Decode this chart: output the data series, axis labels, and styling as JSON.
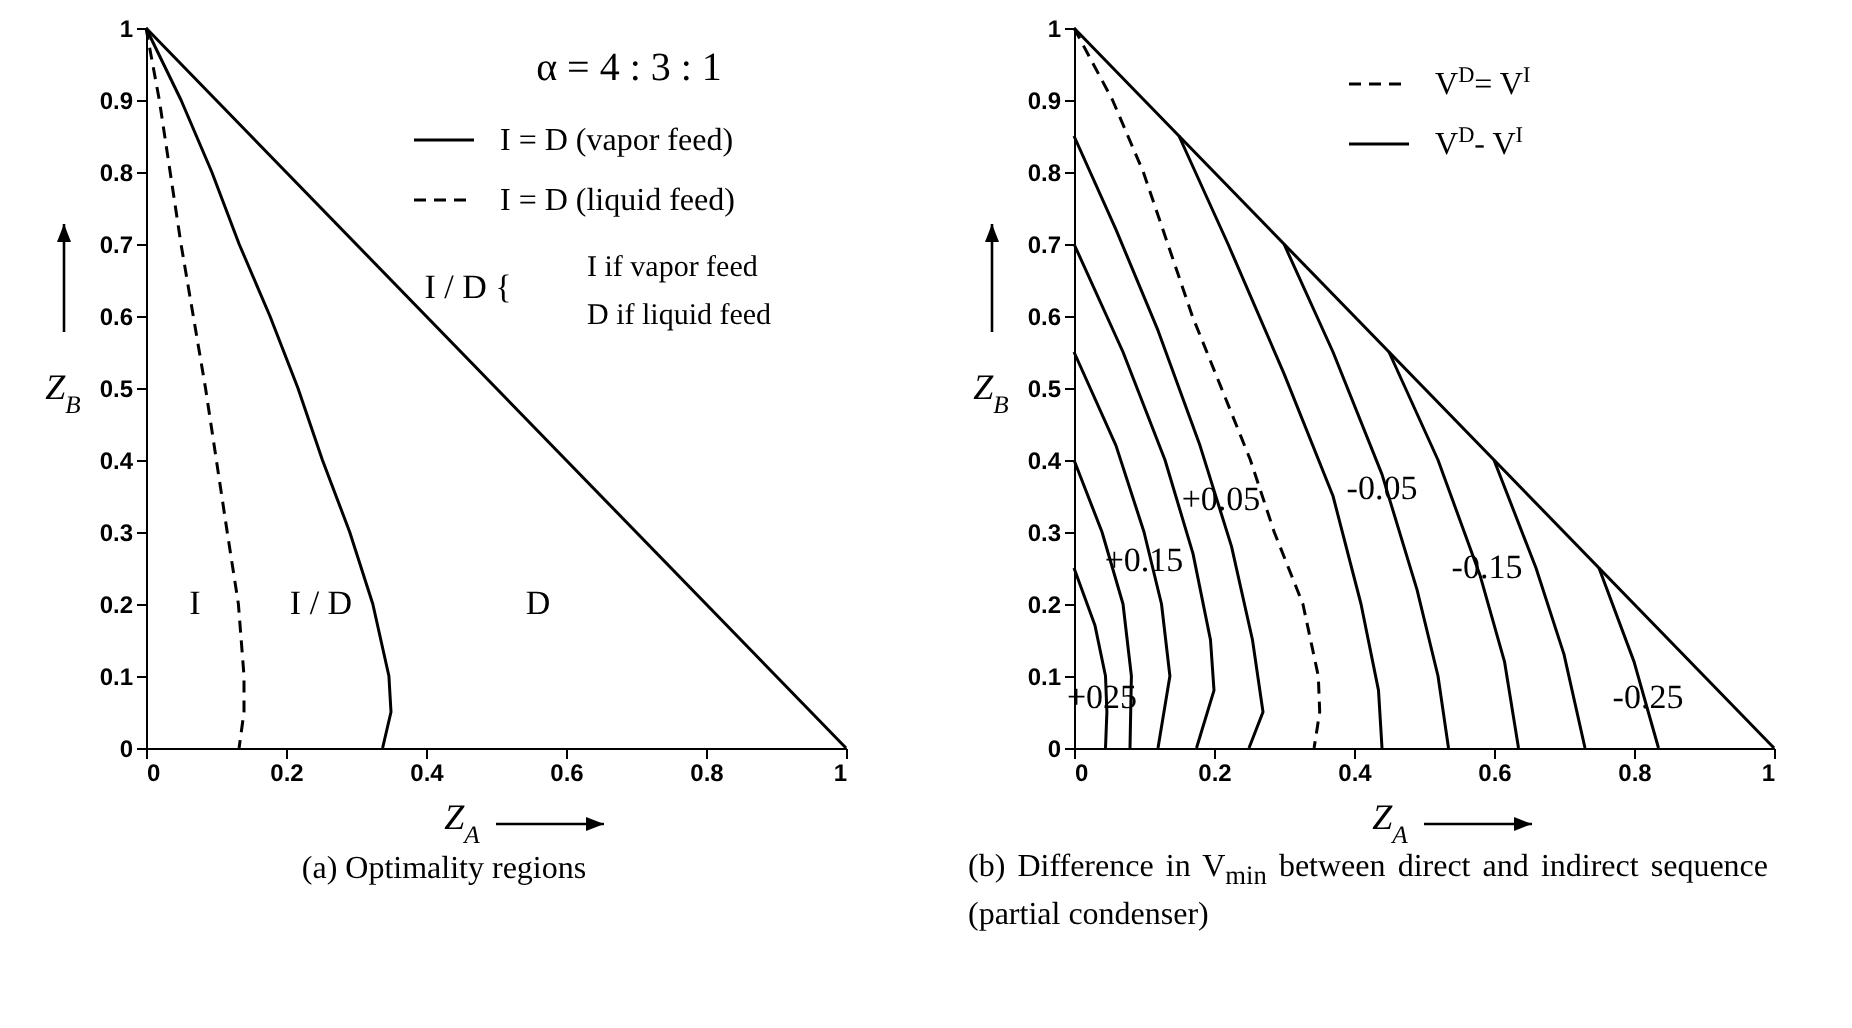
{
  "chart_data": [
    {
      "type": "line",
      "title": "(a) Optimality regions",
      "xlabel": "Z$_{A}$",
      "ylabel": "Z$_{B}$",
      "xlim": [
        0,
        1
      ],
      "ylim": [
        0,
        1
      ],
      "xticks": [
        0,
        0.2,
        0.4,
        0.6,
        0.8,
        1
      ],
      "yticks": [
        0,
        0.1,
        0.2,
        0.3,
        0.4,
        0.5,
        0.6,
        0.7,
        0.8,
        0.9,
        1
      ],
      "legend": "top right",
      "annotations": [
        "α = 4 : 3 : 1",
        "I / D  {",
        "I   if vapor feed",
        "D   if liquid feed",
        "I",
        "I / D",
        "D"
      ],
      "series": [
        {
          "color": "#000000",
          "line_style": "solid",
          "x": [
            0,
            1
          ],
          "values": [
            1,
            0
          ]
        },
        {
          "name": "I = D (vapor feed)",
          "color": "#000000",
          "line_style": "solid",
          "x": [
            0,
            0.05,
            0.094,
            0.133,
            0.177,
            0.217,
            0.252,
            0.291,
            0.324,
            0.347,
            0.35,
            0.338
          ],
          "values": [
            1,
            0.9,
            0.8,
            0.7,
            0.6,
            0.5,
            0.4,
            0.3,
            0.2,
            0.1,
            0.05,
            0
          ]
        },
        {
          "name": "I = D (liquid feed)",
          "color": "#000000",
          "line_style": "dashed",
          "x": [
            0,
            0.019,
            0.05,
            0.085,
            0.116,
            0.132,
            0.14,
            0.14,
            0.133
          ],
          "values": [
            1,
            0.9,
            0.7,
            0.5,
            0.3,
            0.2,
            0.1,
            0.05,
            0
          ]
        }
      ]
    },
    {
      "type": "line",
      "title": "(b) Difference in V$_{min}$ between direct and indirect sequence (partial condenser)",
      "xlabel": "Z$_{A}$",
      "ylabel": "Z$_{B}$",
      "xlim": [
        0,
        1
      ],
      "ylim": [
        0,
        1
      ],
      "xticks": [
        0,
        0.2,
        0.4,
        0.6,
        0.8,
        1
      ],
      "yticks": [
        0,
        0.1,
        0.2,
        0.3,
        0.4,
        0.5,
        0.6,
        0.7,
        0.8,
        0.9,
        1
      ],
      "legend": "top right",
      "annotations": [
        {
          "text": "+025",
          "x": 0.04,
          "y": 0.07
        },
        {
          "text": "+0.15",
          "x": 0.1,
          "y": 0.26
        },
        {
          "text": "+0.05",
          "x": 0.21,
          "y": 0.345
        },
        {
          "text": "-0.05",
          "x": 0.44,
          "y": 0.36
        },
        {
          "text": "-0.15",
          "x": 0.59,
          "y": 0.25
        },
        {
          "text": "-0.25",
          "x": 0.82,
          "y": 0.07
        }
      ],
      "series": [
        {
          "color": "#000000",
          "line_style": "solid",
          "x": [
            0,
            1
          ],
          "values": [
            1,
            0
          ]
        },
        {
          "name": "V$^{D}$= V$^{I}$",
          "color": "#000000",
          "line_style": "dashed",
          "x": [
            0,
            0.055,
            0.099,
            0.169,
            0.252,
            0.286,
            0.327,
            0.349,
            0.351,
            0.343
          ],
          "values": [
            1,
            0.9,
            0.8,
            0.6,
            0.4,
            0.3,
            0.2,
            0.1,
            0.05,
            0
          ]
        },
        {
          "name": "V$^{D}$- V$^{I}$",
          "color": "#000000",
          "line_style": "solid",
          "x": [
            0.15,
            0.22,
            0.3,
            0.37,
            0.41,
            0.435,
            0.44
          ],
          "values": [
            0.85,
            0.7,
            0.52,
            0.35,
            0.2,
            0.08,
            0
          ]
        },
        {
          "color": "#000000",
          "line_style": "solid",
          "x": [
            0,
            0.03,
            0.045,
            0.047,
            0.045
          ],
          "values": [
            0.25,
            0.17,
            0.1,
            0.05,
            0
          ]
        },
        {
          "color": "#000000",
          "line_style": "solid",
          "x": [
            0,
            0.04,
            0.07,
            0.082,
            0.08
          ],
          "values": [
            0.4,
            0.3,
            0.2,
            0.1,
            0
          ]
        },
        {
          "color": "#000000",
          "line_style": "solid",
          "x": [
            0,
            0.06,
            0.1,
            0.125,
            0.137,
            0.12
          ],
          "values": [
            0.55,
            0.42,
            0.3,
            0.2,
            0.1,
            0
          ]
        },
        {
          "color": "#000000",
          "line_style": "solid",
          "x": [
            0,
            0.07,
            0.13,
            0.17,
            0.195,
            0.2,
            0.175
          ],
          "values": [
            0.7,
            0.55,
            0.4,
            0.27,
            0.15,
            0.08,
            0
          ]
        },
        {
          "color": "#000000",
          "line_style": "solid",
          "x": [
            0,
            0.06,
            0.12,
            0.18,
            0.225,
            0.255,
            0.27,
            0.25
          ],
          "values": [
            0.85,
            0.72,
            0.58,
            0.42,
            0.28,
            0.15,
            0.05,
            0
          ]
        },
        {
          "color": "#000000",
          "line_style": "solid",
          "x": [
            0.3,
            0.37,
            0.44,
            0.49,
            0.52,
            0.535
          ],
          "values": [
            0.7,
            0.55,
            0.38,
            0.22,
            0.1,
            0
          ]
        },
        {
          "color": "#000000",
          "line_style": "solid",
          "x": [
            0.45,
            0.52,
            0.58,
            0.615,
            0.635
          ],
          "values": [
            0.55,
            0.4,
            0.24,
            0.12,
            0
          ]
        },
        {
          "color": "#000000",
          "line_style": "solid",
          "x": [
            0.6,
            0.66,
            0.7,
            0.73
          ],
          "values": [
            0.4,
            0.25,
            0.13,
            0
          ]
        },
        {
          "color": "#000000",
          "line_style": "solid",
          "x": [
            0.75,
            0.8,
            0.835
          ],
          "values": [
            0.25,
            0.12,
            0
          ]
        }
      ]
    }
  ]
}
